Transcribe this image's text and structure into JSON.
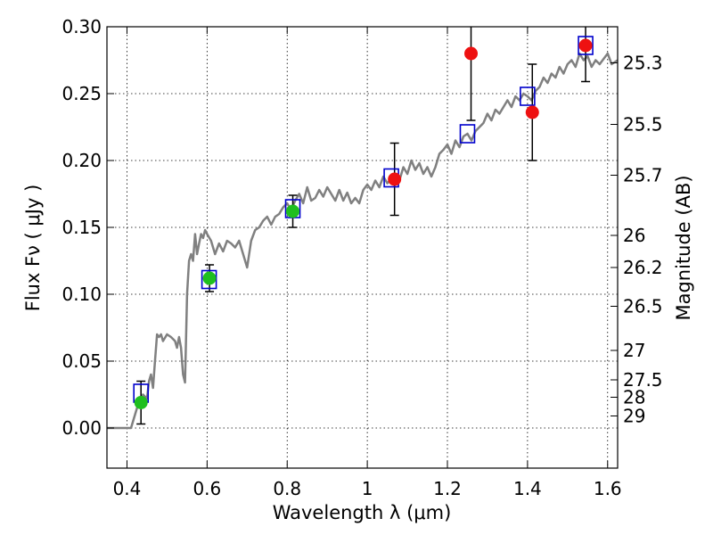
{
  "chart_data": {
    "type": "scatter",
    "xlabel": "Wavelength  λ (μm)",
    "ylabel_left": "Flux  Fν  ( μJy )",
    "ylabel_right": "Magnitude (AB)",
    "xlim": [
      0.35,
      1.625
    ],
    "ylim": [
      -0.03,
      0.3
    ],
    "grid": true,
    "x_ticks": [
      0.4,
      0.6,
      0.8,
      1.0,
      1.2,
      1.4,
      1.6
    ],
    "x_tick_labels": [
      "0.4",
      "0.6",
      "0.8",
      "1",
      "1.2",
      "1.4",
      "1.6"
    ],
    "y_ticks": [
      0.0,
      0.05,
      0.1,
      0.15,
      0.2,
      0.25,
      0.3
    ],
    "y_tick_labels": [
      "0.00",
      "0.05",
      "0.10",
      "0.15",
      "0.20",
      "0.25",
      "0.30"
    ],
    "right_ticks": [
      {
        "label": "25.3",
        "flux": 0.273
      },
      {
        "label": "25.5",
        "flux": 0.227
      },
      {
        "label": "25.7",
        "flux": 0.189
      },
      {
        "label": "26",
        "flux": 0.144
      },
      {
        "label": "26.2",
        "flux": 0.12
      },
      {
        "label": "26.5",
        "flux": 0.091
      },
      {
        "label": "27",
        "flux": 0.058
      },
      {
        "label": "27.5",
        "flux": 0.036
      },
      {
        "label": "28",
        "flux": 0.023
      },
      {
        "label": "29",
        "flux": 0.009
      }
    ],
    "series": [
      {
        "name": "model_spectrum",
        "kind": "line",
        "color": "#808080",
        "points": [
          [
            0.35,
            0.0
          ],
          [
            0.41,
            0.0
          ],
          [
            0.42,
            0.01
          ],
          [
            0.43,
            0.02
          ],
          [
            0.44,
            0.025
          ],
          [
            0.45,
            0.022
          ],
          [
            0.455,
            0.035
          ],
          [
            0.46,
            0.04
          ],
          [
            0.465,
            0.03
          ],
          [
            0.47,
            0.05
          ],
          [
            0.475,
            0.07
          ],
          [
            0.48,
            0.068
          ],
          [
            0.485,
            0.07
          ],
          [
            0.49,
            0.065
          ],
          [
            0.5,
            0.07
          ],
          [
            0.51,
            0.068
          ],
          [
            0.52,
            0.065
          ],
          [
            0.525,
            0.06
          ],
          [
            0.53,
            0.068
          ],
          [
            0.535,
            0.06
          ],
          [
            0.54,
            0.04
          ],
          [
            0.545,
            0.034
          ],
          [
            0.55,
            0.1
          ],
          [
            0.555,
            0.125
          ],
          [
            0.56,
            0.13
          ],
          [
            0.565,
            0.125
          ],
          [
            0.57,
            0.145
          ],
          [
            0.575,
            0.13
          ],
          [
            0.58,
            0.138
          ],
          [
            0.585,
            0.145
          ],
          [
            0.59,
            0.142
          ],
          [
            0.595,
            0.148
          ],
          [
            0.6,
            0.145
          ],
          [
            0.61,
            0.14
          ],
          [
            0.62,
            0.13
          ],
          [
            0.63,
            0.138
          ],
          [
            0.64,
            0.132
          ],
          [
            0.65,
            0.14
          ],
          [
            0.66,
            0.138
          ],
          [
            0.67,
            0.135
          ],
          [
            0.68,
            0.14
          ],
          [
            0.69,
            0.13
          ],
          [
            0.7,
            0.12
          ],
          [
            0.71,
            0.14
          ],
          [
            0.72,
            0.148
          ],
          [
            0.73,
            0.15
          ],
          [
            0.74,
            0.155
          ],
          [
            0.75,
            0.158
          ],
          [
            0.76,
            0.152
          ],
          [
            0.77,
            0.158
          ],
          [
            0.78,
            0.16
          ],
          [
            0.79,
            0.165
          ],
          [
            0.8,
            0.168
          ],
          [
            0.81,
            0.163
          ],
          [
            0.82,
            0.17
          ],
          [
            0.83,
            0.175
          ],
          [
            0.84,
            0.168
          ],
          [
            0.85,
            0.18
          ],
          [
            0.86,
            0.17
          ],
          [
            0.87,
            0.172
          ],
          [
            0.88,
            0.178
          ],
          [
            0.89,
            0.173
          ],
          [
            0.9,
            0.18
          ],
          [
            0.91,
            0.175
          ],
          [
            0.92,
            0.17
          ],
          [
            0.93,
            0.178
          ],
          [
            0.94,
            0.17
          ],
          [
            0.95,
            0.176
          ],
          [
            0.96,
            0.168
          ],
          [
            0.97,
            0.172
          ],
          [
            0.98,
            0.168
          ],
          [
            0.99,
            0.178
          ],
          [
            1.0,
            0.182
          ],
          [
            1.01,
            0.178
          ],
          [
            1.02,
            0.185
          ],
          [
            1.03,
            0.18
          ],
          [
            1.04,
            0.188
          ],
          [
            1.05,
            0.183
          ],
          [
            1.06,
            0.186
          ],
          [
            1.07,
            0.19
          ],
          [
            1.08,
            0.185
          ],
          [
            1.09,
            0.195
          ],
          [
            1.1,
            0.19
          ],
          [
            1.11,
            0.2
          ],
          [
            1.12,
            0.193
          ],
          [
            1.13,
            0.198
          ],
          [
            1.14,
            0.19
          ],
          [
            1.15,
            0.195
          ],
          [
            1.16,
            0.188
          ],
          [
            1.17,
            0.195
          ],
          [
            1.18,
            0.205
          ],
          [
            1.19,
            0.208
          ],
          [
            1.2,
            0.212
          ],
          [
            1.21,
            0.205
          ],
          [
            1.22,
            0.215
          ],
          [
            1.23,
            0.21
          ],
          [
            1.24,
            0.218
          ],
          [
            1.25,
            0.22
          ],
          [
            1.26,
            0.215
          ],
          [
            1.27,
            0.222
          ],
          [
            1.28,
            0.225
          ],
          [
            1.29,
            0.228
          ],
          [
            1.3,
            0.235
          ],
          [
            1.31,
            0.23
          ],
          [
            1.32,
            0.238
          ],
          [
            1.33,
            0.235
          ],
          [
            1.34,
            0.24
          ],
          [
            1.35,
            0.245
          ],
          [
            1.36,
            0.24
          ],
          [
            1.37,
            0.248
          ],
          [
            1.38,
            0.245
          ],
          [
            1.39,
            0.25
          ],
          [
            1.4,
            0.248
          ],
          [
            1.41,
            0.245
          ],
          [
            1.42,
            0.252
          ],
          [
            1.43,
            0.255
          ],
          [
            1.44,
            0.262
          ],
          [
            1.45,
            0.258
          ],
          [
            1.46,
            0.265
          ],
          [
            1.47,
            0.262
          ],
          [
            1.48,
            0.27
          ],
          [
            1.49,
            0.265
          ],
          [
            1.5,
            0.272
          ],
          [
            1.51,
            0.275
          ],
          [
            1.52,
            0.27
          ],
          [
            1.53,
            0.28
          ],
          [
            1.54,
            0.275
          ],
          [
            1.55,
            0.278
          ],
          [
            1.56,
            0.27
          ],
          [
            1.57,
            0.275
          ],
          [
            1.58,
            0.272
          ],
          [
            1.59,
            0.276
          ],
          [
            1.6,
            0.28
          ],
          [
            1.61,
            0.272
          ],
          [
            1.625,
            0.275
          ]
        ]
      },
      {
        "name": "model_photometry",
        "kind": "open-square",
        "color": "#0000cc",
        "x": [
          0.435,
          0.605,
          0.814,
          1.06,
          1.25,
          1.4,
          1.545
        ],
        "y": [
          0.026,
          0.111,
          0.164,
          0.187,
          0.22,
          0.248,
          0.286
        ]
      },
      {
        "name": "optical_observed",
        "kind": "filled-circle",
        "color": "#1fbf1f",
        "x": [
          0.435,
          0.606,
          0.814
        ],
        "y": [
          0.019,
          0.112,
          0.162
        ],
        "yerr": [
          0.016,
          0.01,
          0.012
        ]
      },
      {
        "name": "nir_observed",
        "kind": "filled-circle",
        "color": "#ee1111",
        "x": [
          1.068,
          1.259,
          1.412,
          1.545
        ],
        "y": [
          0.186,
          0.28,
          0.236,
          0.286
        ],
        "yerr": [
          0.027,
          0.05,
          0.036,
          0.027
        ]
      }
    ]
  }
}
